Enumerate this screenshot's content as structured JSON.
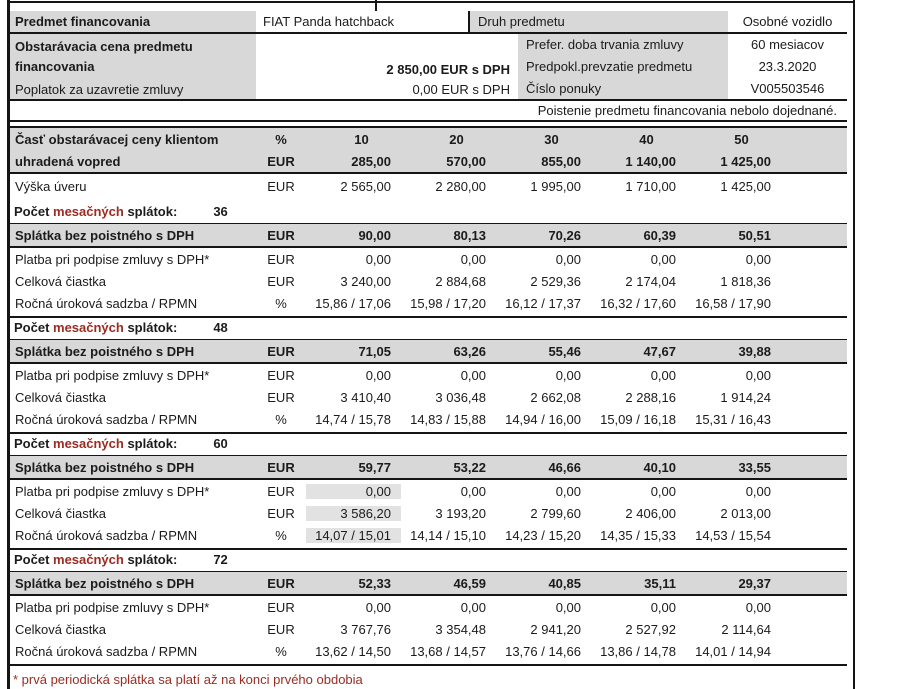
{
  "info": {
    "subject_label": "Predmet financovania",
    "subject_value": "FIAT Panda hatchback",
    "type_label": "Druh predmetu",
    "type_value": "Osobné vozidlo",
    "price_label": "Obstarávacia cena predmetu financovania",
    "price_value": "2 850,00 EUR s DPH",
    "duration_label": "Prefer. doba trvania zmluvy",
    "duration_value": "60 mesiacov",
    "handover_label": "Predpokl.prevzatie predmetu",
    "handover_value": "23.3.2020",
    "fee_label": "Poplatok za uzavretie zmluvy",
    "fee_value": "0,00 EUR s DPH",
    "offer_label": "Číslo ponuky",
    "offer_value": "V005503546",
    "insurance_note": "Poistenie predmetu financovania nebolo dojednané."
  },
  "advance": {
    "title_line1": "Časť obstarávacej ceny klientom",
    "title_line2": "uhradená vopred",
    "unit_percent": "%",
    "unit_eur": "EUR",
    "percents": [
      "10",
      "20",
      "30",
      "40",
      "50"
    ],
    "amounts": [
      "285,00",
      "570,00",
      "855,00",
      "1 140,00",
      "1 425,00"
    ],
    "loan_label": "Výška úveru",
    "loan_unit": "EUR",
    "loan_values": [
      "2 565,00",
      "2 280,00",
      "1 995,00",
      "1 710,00",
      "1 425,00"
    ]
  },
  "blocks": [
    {
      "count_prefix": "Počet",
      "count_red": "mesačných",
      "count_suffix": "splátok:",
      "count": "36",
      "highlight_col": null,
      "header": {
        "label": "Splátka bez poistného s DPH",
        "unit": "EUR",
        "values": [
          "90,00",
          "80,13",
          "70,26",
          "60,39",
          "50,51"
        ]
      },
      "rows": [
        {
          "label": "Platba pri podpise zmluvy s DPH*",
          "unit": "EUR",
          "values": [
            "0,00",
            "0,00",
            "0,00",
            "0,00",
            "0,00"
          ]
        },
        {
          "label": "Celková čiastka",
          "unit": "EUR",
          "values": [
            "3 240,00",
            "2 884,68",
            "2 529,36",
            "2 174,04",
            "1 818,36"
          ]
        },
        {
          "label": "Ročná úroková sadzba / RPMN",
          "unit": "%",
          "values": [
            "15,86 / 17,06",
            "15,98 / 17,20",
            "16,12 / 17,37",
            "16,32 / 17,60",
            "16,58 / 17,90"
          ]
        }
      ]
    },
    {
      "count_prefix": "Počet",
      "count_red": "mesačných",
      "count_suffix": "splátok:",
      "count": "48",
      "highlight_col": null,
      "header": {
        "label": "Splátka bez poistného s DPH",
        "unit": "EUR",
        "values": [
          "71,05",
          "63,26",
          "55,46",
          "47,67",
          "39,88"
        ]
      },
      "rows": [
        {
          "label": "Platba pri podpise zmluvy s DPH*",
          "unit": "EUR",
          "values": [
            "0,00",
            "0,00",
            "0,00",
            "0,00",
            "0,00"
          ]
        },
        {
          "label": "Celková čiastka",
          "unit": "EUR",
          "values": [
            "3 410,40",
            "3 036,48",
            "2 662,08",
            "2 288,16",
            "1 914,24"
          ]
        },
        {
          "label": "Ročná úroková sadzba / RPMN",
          "unit": "%",
          "values": [
            "14,74 / 15,78",
            "14,83 / 15,88",
            "14,94 / 16,00",
            "15,09 / 16,18",
            "15,31 / 16,43"
          ]
        }
      ]
    },
    {
      "count_prefix": "Počet",
      "count_red": "mesačných",
      "count_suffix": "splátok:",
      "count": "60",
      "highlight_col": 0,
      "header": {
        "label": "Splátka bez poistného s DPH",
        "unit": "EUR",
        "values": [
          "59,77",
          "53,22",
          "46,66",
          "40,10",
          "33,55"
        ]
      },
      "rows": [
        {
          "label": "Platba pri podpise zmluvy s DPH*",
          "unit": "EUR",
          "values": [
            "0,00",
            "0,00",
            "0,00",
            "0,00",
            "0,00"
          ]
        },
        {
          "label": "Celková čiastka",
          "unit": "EUR",
          "values": [
            "3 586,20",
            "3 193,20",
            "2 799,60",
            "2 406,00",
            "2 013,00"
          ]
        },
        {
          "label": "Ročná úroková sadzba / RPMN",
          "unit": "%",
          "values": [
            "14,07 / 15,01",
            "14,14 / 15,10",
            "14,23 / 15,20",
            "14,35 / 15,33",
            "14,53 / 15,54"
          ]
        }
      ]
    },
    {
      "count_prefix": "Počet",
      "count_red": "mesačných",
      "count_suffix": "splátok:",
      "count": "72",
      "highlight_col": null,
      "header": {
        "label": "Splátka bez poistného s DPH",
        "unit": "EUR",
        "values": [
          "52,33",
          "46,59",
          "40,85",
          "35,11",
          "29,37"
        ]
      },
      "rows": [
        {
          "label": "Platba pri podpise zmluvy s DPH*",
          "unit": "EUR",
          "values": [
            "0,00",
            "0,00",
            "0,00",
            "0,00",
            "0,00"
          ]
        },
        {
          "label": "Celková čiastka",
          "unit": "EUR",
          "values": [
            "3 767,76",
            "3 354,48",
            "2 941,20",
            "2 527,92",
            "2 114,64"
          ]
        },
        {
          "label": "Ročná úroková sadzba / RPMN",
          "unit": "%",
          "values": [
            "13,62 / 14,50",
            "13,68 / 14,57",
            "13,76 / 14,66",
            "13,86 / 14,78",
            "14,01 / 14,94"
          ]
        }
      ]
    }
  ],
  "footnote": "* prvá periodická splátka sa platí až na konci prvého obdobia",
  "colors": {
    "header_gray": "#d8d8d8",
    "highlight_gray": "#e2e2e2",
    "accent_red": "#9c2b22",
    "line_black": "#151515"
  }
}
